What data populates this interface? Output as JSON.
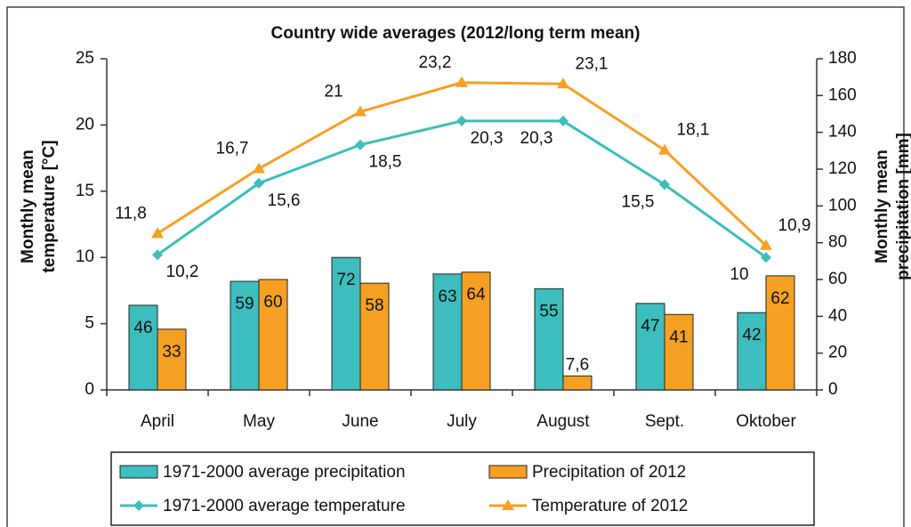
{
  "chart_data": {
    "type": "combo",
    "title": "Country wide averages (2012/long term mean)",
    "ylabel": [
      "Monthly mean",
      "temperature [°C]"
    ],
    "y2label": [
      "Monthly mean",
      "precipitation [mm]"
    ],
    "categories": [
      "April",
      "May",
      "June",
      "July",
      "August",
      "Sept.",
      "Oktober"
    ],
    "ylim": [
      0,
      25
    ],
    "yticks": [
      0,
      5,
      10,
      15,
      20,
      25
    ],
    "y2lim": [
      0,
      180
    ],
    "y2ticks": [
      0,
      20,
      40,
      60,
      80,
      100,
      120,
      140,
      160,
      180
    ],
    "legend": "bottom",
    "series": [
      {
        "name": "1971-2000 average precipitation",
        "type": "bar",
        "axis": "y2",
        "color": "#3dbdbd",
        "values": [
          46,
          59,
          72,
          63,
          55,
          47,
          42
        ]
      },
      {
        "name": "Precipitation of 2012",
        "type": "bar",
        "axis": "y2",
        "color": "#f6a023",
        "values": [
          33,
          60,
          58,
          64,
          7.6,
          41,
          62
        ],
        "value_labels": [
          "33",
          "60",
          "58",
          "64",
          "7,6",
          "41",
          "62"
        ]
      },
      {
        "name": "1971-2000 average temperature",
        "type": "line",
        "marker": "diamond",
        "color": "#3dbdbd",
        "values": [
          10.2,
          15.6,
          18.5,
          20.3,
          20.3,
          15.5,
          10
        ],
        "value_labels": [
          "10,2",
          "15,6",
          "18,5",
          "20,3",
          "20,3",
          "15,5",
          "10"
        ]
      },
      {
        "name": "Temperature of 2012",
        "type": "line",
        "marker": "triangle",
        "color": "#f6a023",
        "values": [
          11.8,
          16.7,
          21,
          23.2,
          23.1,
          18.1,
          10.9
        ],
        "value_labels": [
          "11,8",
          "16,7",
          "21",
          "23,2",
          "23,1",
          "18,1",
          "10,9"
        ]
      }
    ]
  }
}
